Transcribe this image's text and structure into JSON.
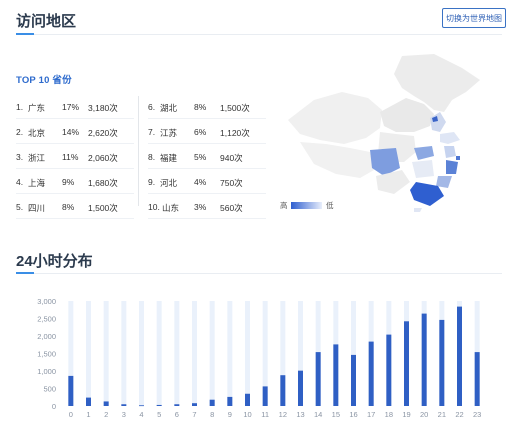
{
  "header": {
    "title": "访问地区",
    "switch_label": "切换为世界地图"
  },
  "top10": {
    "title": "TOP 10 省份",
    "rows": [
      {
        "rank": "1.",
        "name": "广东",
        "pct": "17%",
        "count": "3,180次"
      },
      {
        "rank": "2.",
        "name": "北京",
        "pct": "14%",
        "count": "2,620次"
      },
      {
        "rank": "3.",
        "name": "浙江",
        "pct": "11%",
        "count": "2,060次"
      },
      {
        "rank": "4.",
        "name": "上海",
        "pct": "9%",
        "count": "1,680次"
      },
      {
        "rank": "5.",
        "name": "四川",
        "pct": "8%",
        "count": "1,500次"
      },
      {
        "rank": "6.",
        "name": "湖北",
        "pct": "8%",
        "count": "1,500次"
      },
      {
        "rank": "7.",
        "name": "江苏",
        "pct": "6%",
        "count": "1,120次"
      },
      {
        "rank": "8.",
        "name": "福建",
        "pct": "5%",
        "count": "940次"
      },
      {
        "rank": "9.",
        "name": "河北",
        "pct": "4%",
        "count": "750次"
      },
      {
        "rank": "10.",
        "name": "山东",
        "pct": "3%",
        "count": "560次"
      }
    ]
  },
  "legend": {
    "high": "高",
    "low": "低"
  },
  "colors": {
    "accent": "#3a8ee6",
    "bar": "#2f5fc4",
    "bar_bg": "#eaf1fb",
    "map_high": "#2f5fd0",
    "map_low": "#e8eefb"
  },
  "hourly": {
    "title": "24小时分布"
  },
  "chart_data": {
    "type": "bar",
    "title": "",
    "xlabel": "",
    "ylabel": "",
    "categories": [
      "0",
      "1",
      "2",
      "3",
      "4",
      "5",
      "6",
      "7",
      "8",
      "9",
      "10",
      "11",
      "12",
      "13",
      "14",
      "15",
      "16",
      "17",
      "18",
      "19",
      "20",
      "21",
      "22",
      "23"
    ],
    "values": [
      860,
      240,
      130,
      50,
      20,
      30,
      50,
      80,
      180,
      260,
      350,
      560,
      880,
      1010,
      1540,
      1760,
      1460,
      1840,
      2040,
      2420,
      2640,
      2460,
      2840,
      1540
    ],
    "ylim": [
      0,
      3000
    ],
    "yticks": [
      "0",
      "500",
      "1,000",
      "1,500",
      "2,000",
      "2,500",
      "3,000"
    ],
    "grid": false
  }
}
